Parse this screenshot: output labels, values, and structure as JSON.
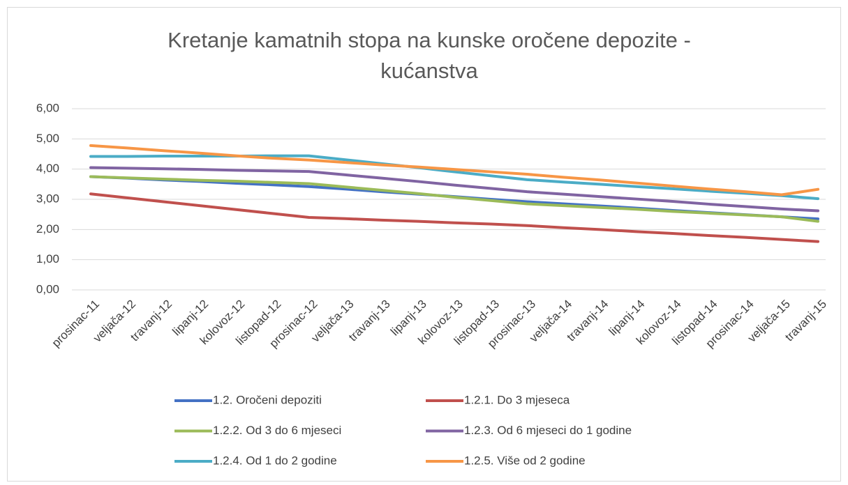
{
  "chart_data": {
    "type": "line",
    "title": [
      "Kretanje kamatnih stopa na kunske oročene depozite -",
      "kućanstva"
    ],
    "categories": [
      "prosinac-11",
      "veljača-12",
      "travanj-12",
      "lipanj-12",
      "kolovoz-12",
      "listopad-12",
      "prosinac-12",
      "veljača-13",
      "travanj-13",
      "lipanj-13",
      "kolovoz-13",
      "listopad-13",
      "prosinac-13",
      "veljača-14",
      "travanj-14",
      "lipanj-14",
      "kolovoz-14",
      "listopad-14",
      "prosinac-14",
      "veljača-15",
      "travanj-15"
    ],
    "series": [
      {
        "name": "1.2. Oročeni depoziti",
        "color": "#4472c4",
        "values": [
          3.75,
          3.7,
          3.64,
          3.59,
          3.53,
          3.48,
          3.42,
          3.34,
          3.25,
          3.17,
          3.09,
          3.0,
          2.92,
          2.85,
          2.78,
          2.71,
          2.63,
          2.56,
          2.49,
          2.42,
          2.35
        ]
      },
      {
        "name": "1.2.1. Do 3 mjeseca",
        "color": "#c0504d",
        "values": [
          3.18,
          3.05,
          2.92,
          2.79,
          2.66,
          2.53,
          2.4,
          2.36,
          2.31,
          2.27,
          2.22,
          2.18,
          2.13,
          2.06,
          2.0,
          1.93,
          1.87,
          1.8,
          1.74,
          1.67,
          1.6
        ]
      },
      {
        "name": "1.2.2. Od 3 do 6 mjeseci",
        "color": "#9bbb59",
        "values": [
          3.75,
          3.71,
          3.67,
          3.63,
          3.6,
          3.56,
          3.52,
          3.41,
          3.3,
          3.19,
          3.07,
          2.96,
          2.85,
          2.79,
          2.73,
          2.67,
          2.6,
          2.54,
          2.48,
          2.42,
          2.27
        ]
      },
      {
        "name": "1.2.3. Od 6 mjeseci do 1 godine",
        "color": "#8064a2",
        "values": [
          4.05,
          4.03,
          4.01,
          3.99,
          3.96,
          3.94,
          3.92,
          3.81,
          3.7,
          3.59,
          3.47,
          3.36,
          3.25,
          3.17,
          3.09,
          3.01,
          2.93,
          2.84,
          2.76,
          2.68,
          2.62
        ]
      },
      {
        "name": "1.2.4. Od 1 do 2 godine",
        "color": "#4bacc6",
        "values": [
          4.42,
          4.42,
          4.43,
          4.43,
          4.43,
          4.44,
          4.44,
          4.31,
          4.18,
          4.05,
          3.91,
          3.78,
          3.65,
          3.57,
          3.5,
          3.42,
          3.35,
          3.27,
          3.2,
          3.12,
          3.02
        ]
      },
      {
        "name": "1.2.5. Više od 2 godine",
        "color": "#f79646",
        "values": [
          4.78,
          4.7,
          4.61,
          4.53,
          4.44,
          4.36,
          4.3,
          4.22,
          4.14,
          4.07,
          3.99,
          3.91,
          3.83,
          3.73,
          3.64,
          3.54,
          3.44,
          3.34,
          3.25,
          3.15,
          3.33
        ]
      }
    ],
    "ylim": [
      0,
      6
    ],
    "yticks": [
      {
        "value": 0,
        "label": "0,00"
      },
      {
        "value": 1,
        "label": "1,00"
      },
      {
        "value": 2,
        "label": "2,00"
      },
      {
        "value": 3,
        "label": "3,00"
      },
      {
        "value": 4,
        "label": "4,00"
      },
      {
        "value": 5,
        "label": "5,00"
      },
      {
        "value": 6,
        "label": "6,00"
      }
    ],
    "grid": true,
    "legend": "bottom"
  }
}
